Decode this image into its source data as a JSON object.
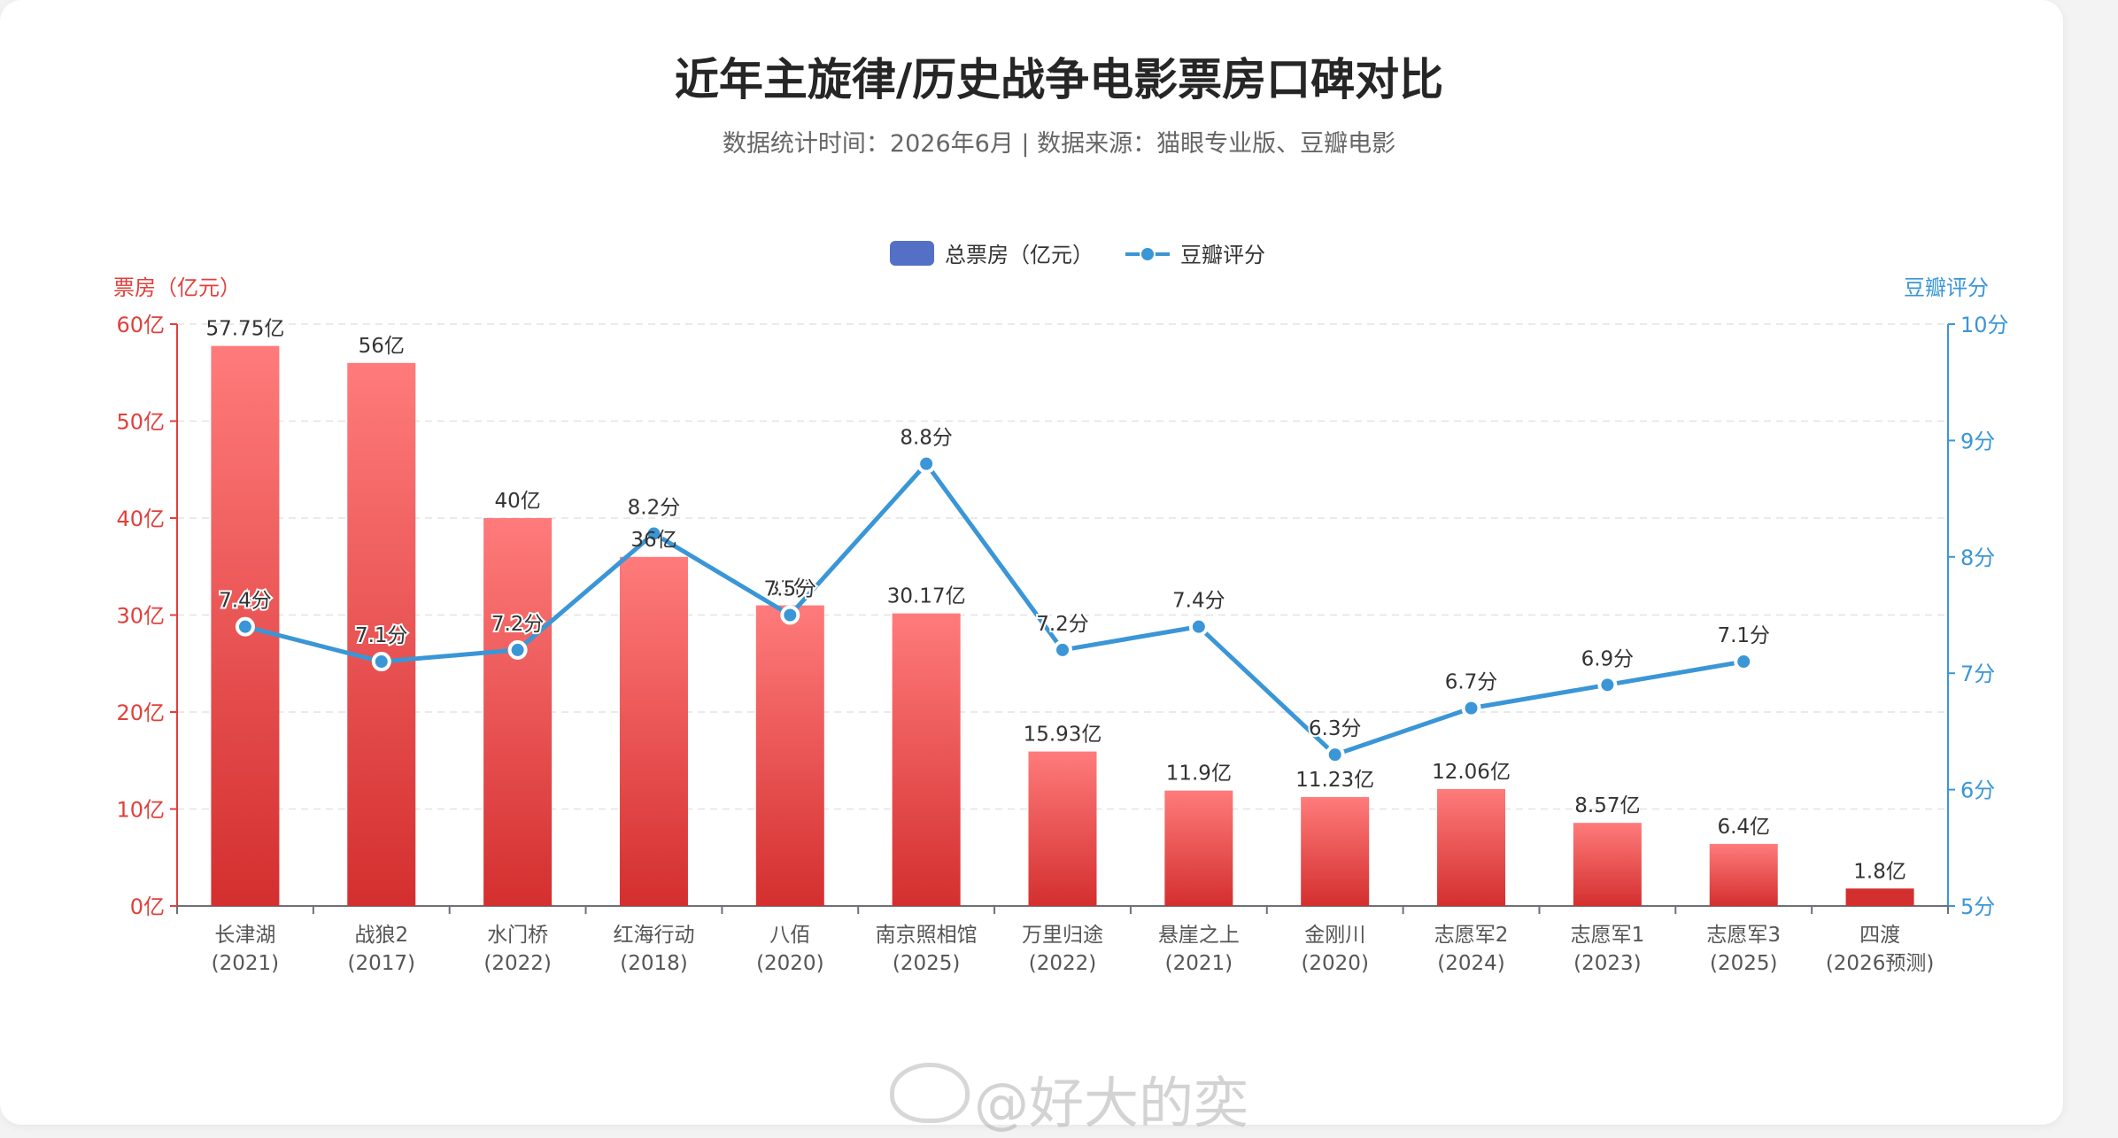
{
  "title": "近年主旋律/历史战争电影票房口碑对比",
  "subtitle": "数据统计时间：2026年6月 | 数据来源：猫眼专业版、豆瓣电影",
  "legend": {
    "bar_label": "总票房（亿元）",
    "line_label": "豆瓣评分"
  },
  "axes": {
    "left_title": "票房（亿元）",
    "right_title": "豆瓣评分"
  },
  "watermark": "@好大的奕",
  "colors": {
    "bar_top": "#ff7b7b",
    "bar_bottom": "#d42f2f",
    "line": "#3a96d6",
    "left_axis": "#e0403b",
    "right_axis": "#3a96d6",
    "legend_bar": "#5470c6"
  },
  "chart_data": {
    "type": "bar",
    "categories": [
      [
        "长津湖",
        "(2021)"
      ],
      [
        "战狼2",
        "(2017)"
      ],
      [
        "水门桥",
        "(2022)"
      ],
      [
        "红海行动",
        "(2018)"
      ],
      [
        "八佰",
        "(2020)"
      ],
      [
        "南京照相馆",
        "(2025)"
      ],
      [
        "万里归途",
        "(2022)"
      ],
      [
        "悬崖之上",
        "(2021)"
      ],
      [
        "金刚川",
        "(2020)"
      ],
      [
        "志愿军2",
        "(2024)"
      ],
      [
        "志愿军1",
        "(2023)"
      ],
      [
        "志愿军3",
        "(2025)"
      ],
      [
        "四渡",
        "(2026预测)"
      ]
    ],
    "series": [
      {
        "name": "总票房（亿元）",
        "type": "bar",
        "values": [
          57.75,
          56,
          40,
          36,
          31,
          30.17,
          15.93,
          11.9,
          11.23,
          12.06,
          8.57,
          6.4,
          1.8
        ],
        "labels": [
          "57.75亿",
          "56亿",
          "40亿",
          "36亿",
          "31亿",
          "30.17亿",
          "15.93亿",
          "11.9亿",
          "11.23亿",
          "12.06亿",
          "8.57亿",
          "6.4亿",
          "1.8亿"
        ]
      },
      {
        "name": "豆瓣评分",
        "type": "line",
        "values": [
          7.4,
          7.1,
          7.2,
          8.2,
          7.5,
          8.8,
          7.2,
          7.4,
          6.3,
          6.7,
          6.9,
          7.1,
          null
        ],
        "labels": [
          "7.4分",
          "7.1分",
          "7.2分",
          "8.2分",
          "7.5分",
          "8.8分",
          "7.2分",
          "7.4分",
          "6.3分",
          "6.7分",
          "6.9分",
          "7.1分",
          ""
        ]
      }
    ],
    "y_left": {
      "min": 0,
      "max": 60,
      "ticks": [
        "0亿",
        "10亿",
        "20亿",
        "30亿",
        "40亿",
        "50亿",
        "60亿"
      ]
    },
    "y_right": {
      "min": 5,
      "max": 10,
      "ticks": [
        "5分",
        "6分",
        "7分",
        "8分",
        "9分",
        "10分"
      ]
    },
    "grid": true,
    "legend_position": "top-center"
  }
}
